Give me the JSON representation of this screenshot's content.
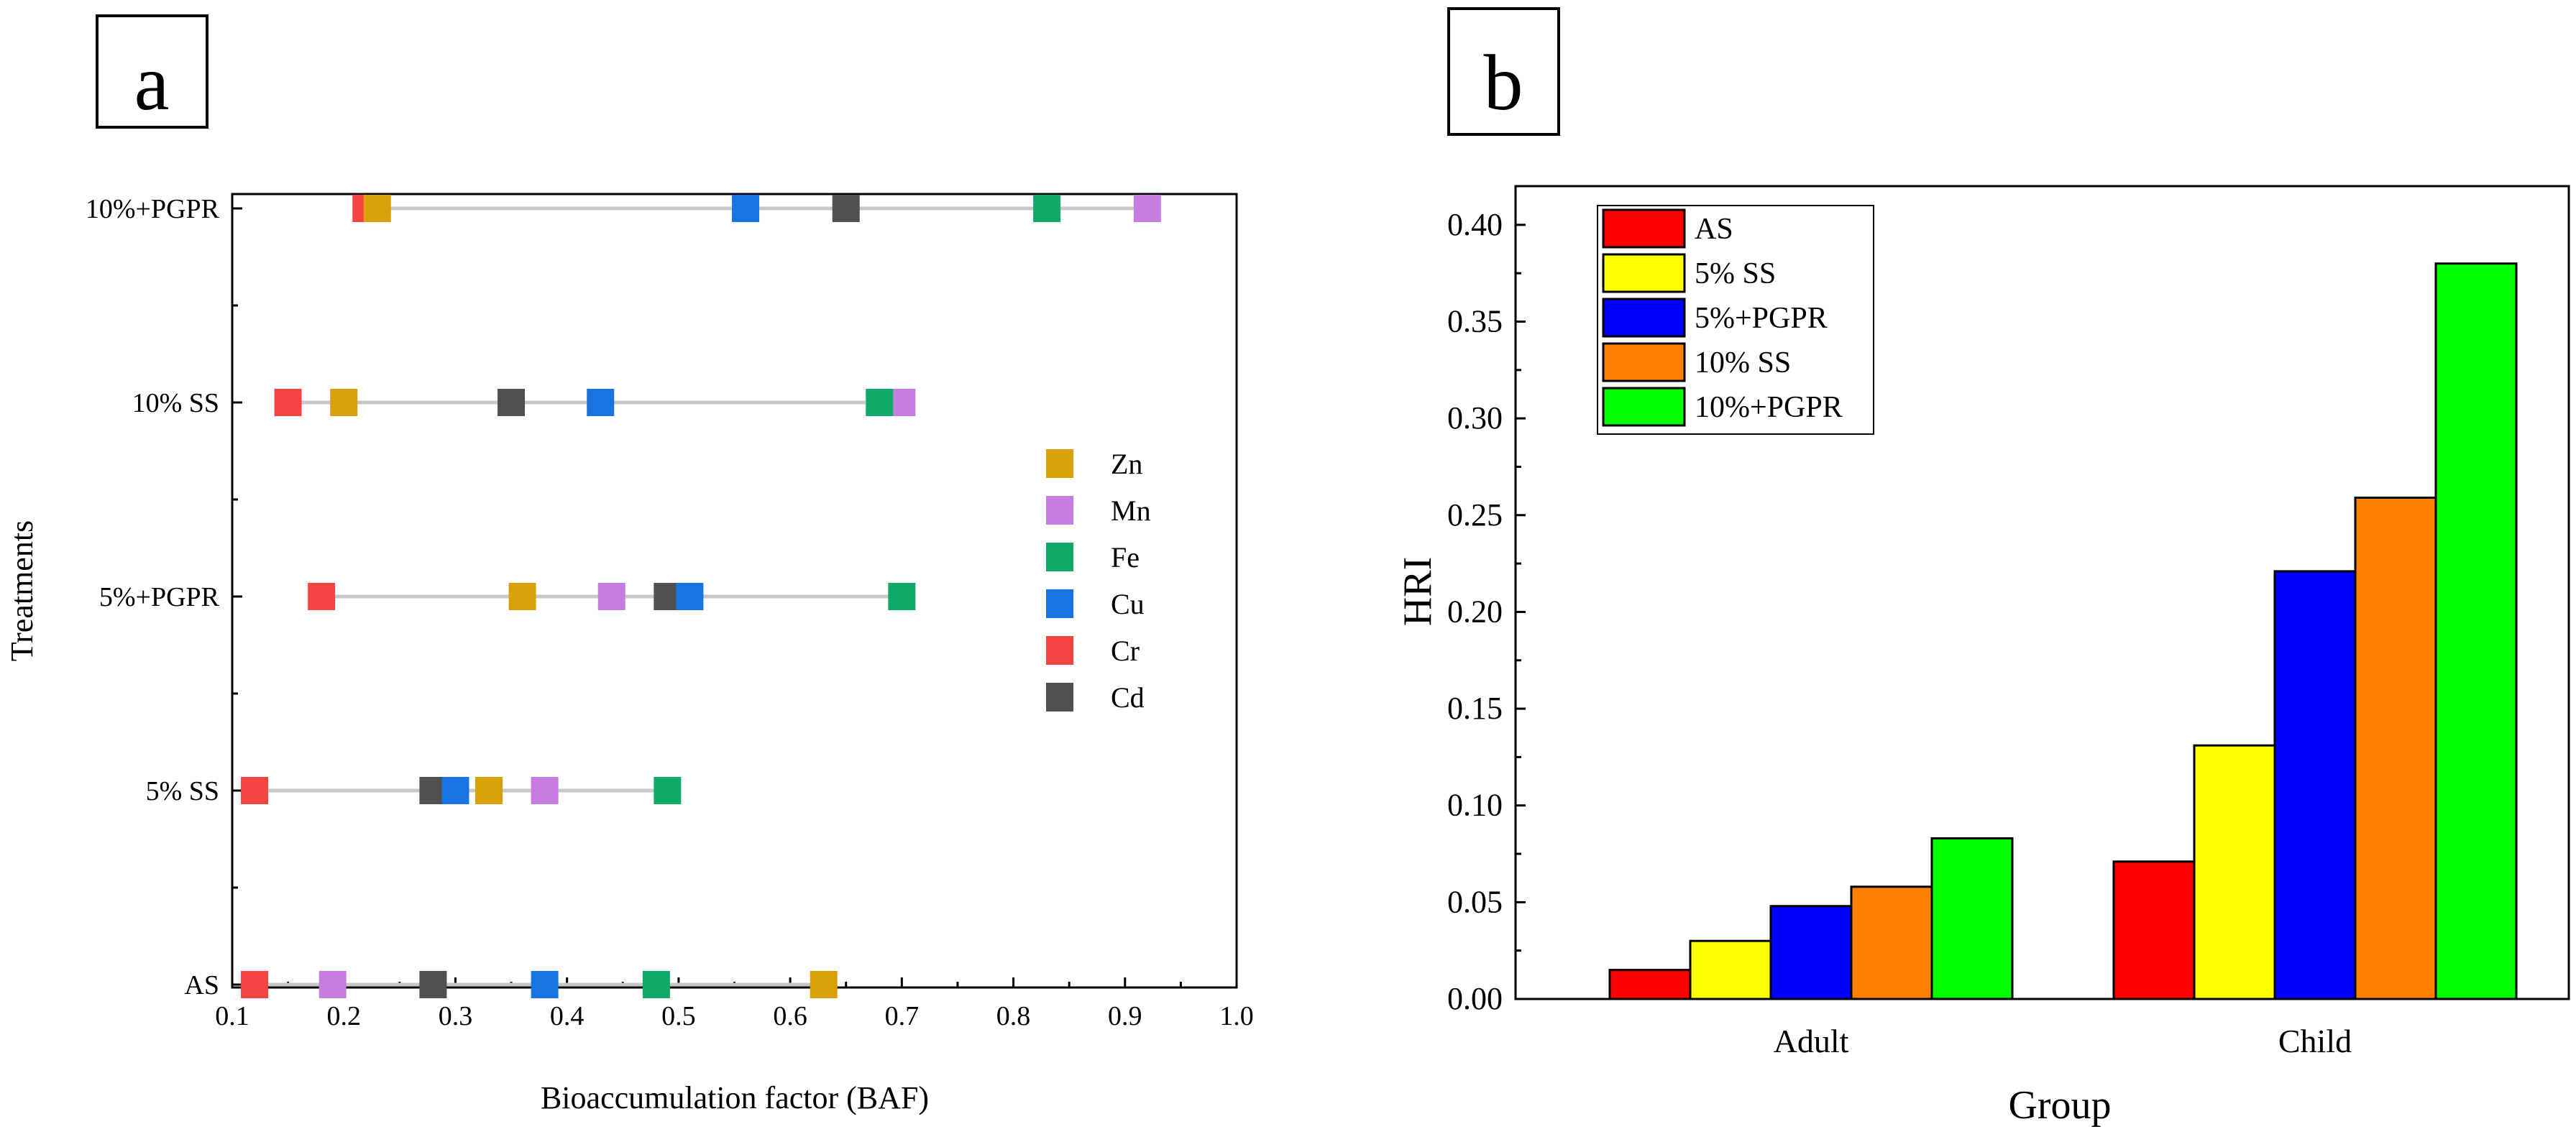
{
  "panels": {
    "a": {
      "label": "a"
    },
    "b": {
      "label": "b"
    }
  },
  "chart_data": [
    {
      "panel": "a",
      "type": "scatter",
      "orientation": "horizontal-dot-plot",
      "xlabel": "Bioaccumulation factor (BAF)",
      "ylabel": "Treatments",
      "xlim": [
        0.1,
        1.0
      ],
      "xticks": [
        "0.1",
        "0.2",
        "0.3",
        "0.4",
        "0.5",
        "0.6",
        "0.7",
        "0.8",
        "0.9",
        "1.0"
      ],
      "categories": [
        "AS",
        "5% SS",
        "5%+PGPR",
        "10% SS",
        "10%+PGPR"
      ],
      "legend_position": "right",
      "series": [
        {
          "name": "Zn",
          "color": "#DAA00C",
          "values": [
            0.63,
            0.33,
            0.36,
            0.2,
            0.23
          ]
        },
        {
          "name": "Mn",
          "color": "#C77CE0",
          "values": [
            0.19,
            0.38,
            0.44,
            0.7,
            0.92
          ]
        },
        {
          "name": "Fe",
          "color": "#0EAA66",
          "values": [
            0.48,
            0.49,
            0.7,
            0.68,
            0.83
          ]
        },
        {
          "name": "Cu",
          "color": "#1874E0",
          "values": [
            0.38,
            0.3,
            0.51,
            0.43,
            0.56
          ]
        },
        {
          "name": "Cr",
          "color": "#F44444",
          "values": [
            0.12,
            0.12,
            0.18,
            0.15,
            0.22
          ]
        },
        {
          "name": "Cd",
          "color": "#505050",
          "values": [
            0.28,
            0.28,
            0.49,
            0.35,
            0.65
          ]
        }
      ]
    },
    {
      "panel": "b",
      "type": "bar",
      "xlabel": "Group",
      "ylabel": "HRI",
      "ylim": [
        0,
        0.42
      ],
      "yticks": [
        "0.00",
        "0.05",
        "0.10",
        "0.15",
        "0.20",
        "0.25",
        "0.30",
        "0.35",
        "0.40"
      ],
      "categories": [
        "Adult",
        "Child"
      ],
      "legend_position": "top-left",
      "series": [
        {
          "name": "AS",
          "color": "#FF0000",
          "values": [
            0.015,
            0.071
          ]
        },
        {
          "name": "5% SS",
          "color": "#FFFF00",
          "values": [
            0.03,
            0.131
          ]
        },
        {
          "name": "5%+PGPR",
          "color": "#0000FF",
          "values": [
            0.048,
            0.221
          ]
        },
        {
          "name": "10% SS",
          "color": "#FF8000",
          "values": [
            0.058,
            0.259
          ]
        },
        {
          "name": "10%+PGPR",
          "color": "#00FF00",
          "values": [
            0.083,
            0.38
          ]
        }
      ]
    }
  ]
}
